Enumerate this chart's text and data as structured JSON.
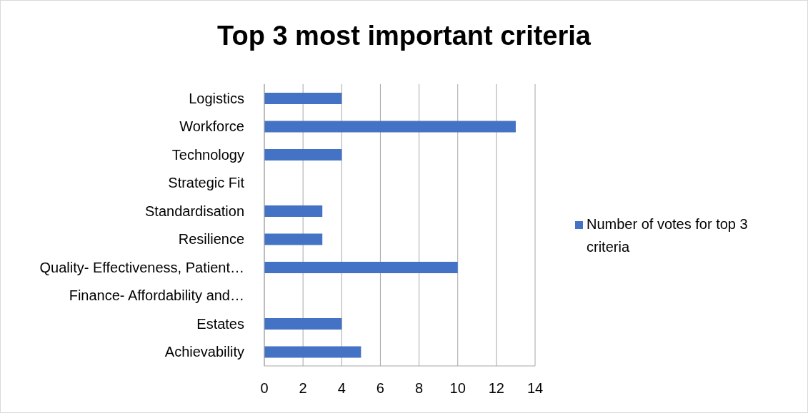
{
  "chart_data": {
    "type": "bar",
    "orientation": "horizontal",
    "title": "Top 3 most important criteria",
    "categories": [
      "Logistics",
      "Workforce",
      "Technology",
      "Strategic Fit",
      "Standardisation",
      "Resilience",
      "Quality- Effectiveness, Patient…",
      "Finance- Affordability and…",
      "Estates",
      "Achievability"
    ],
    "series": [
      {
        "name": "Number of votes for top 3 criteria",
        "color": "#4472c4",
        "values": [
          4,
          13,
          4,
          0,
          3,
          3,
          10,
          0,
          4,
          5
        ]
      }
    ],
    "xlim": [
      0,
      14
    ],
    "xticks": [
      0,
      2,
      4,
      6,
      8,
      10,
      12,
      14
    ],
    "grid": "x",
    "legend": "right"
  }
}
